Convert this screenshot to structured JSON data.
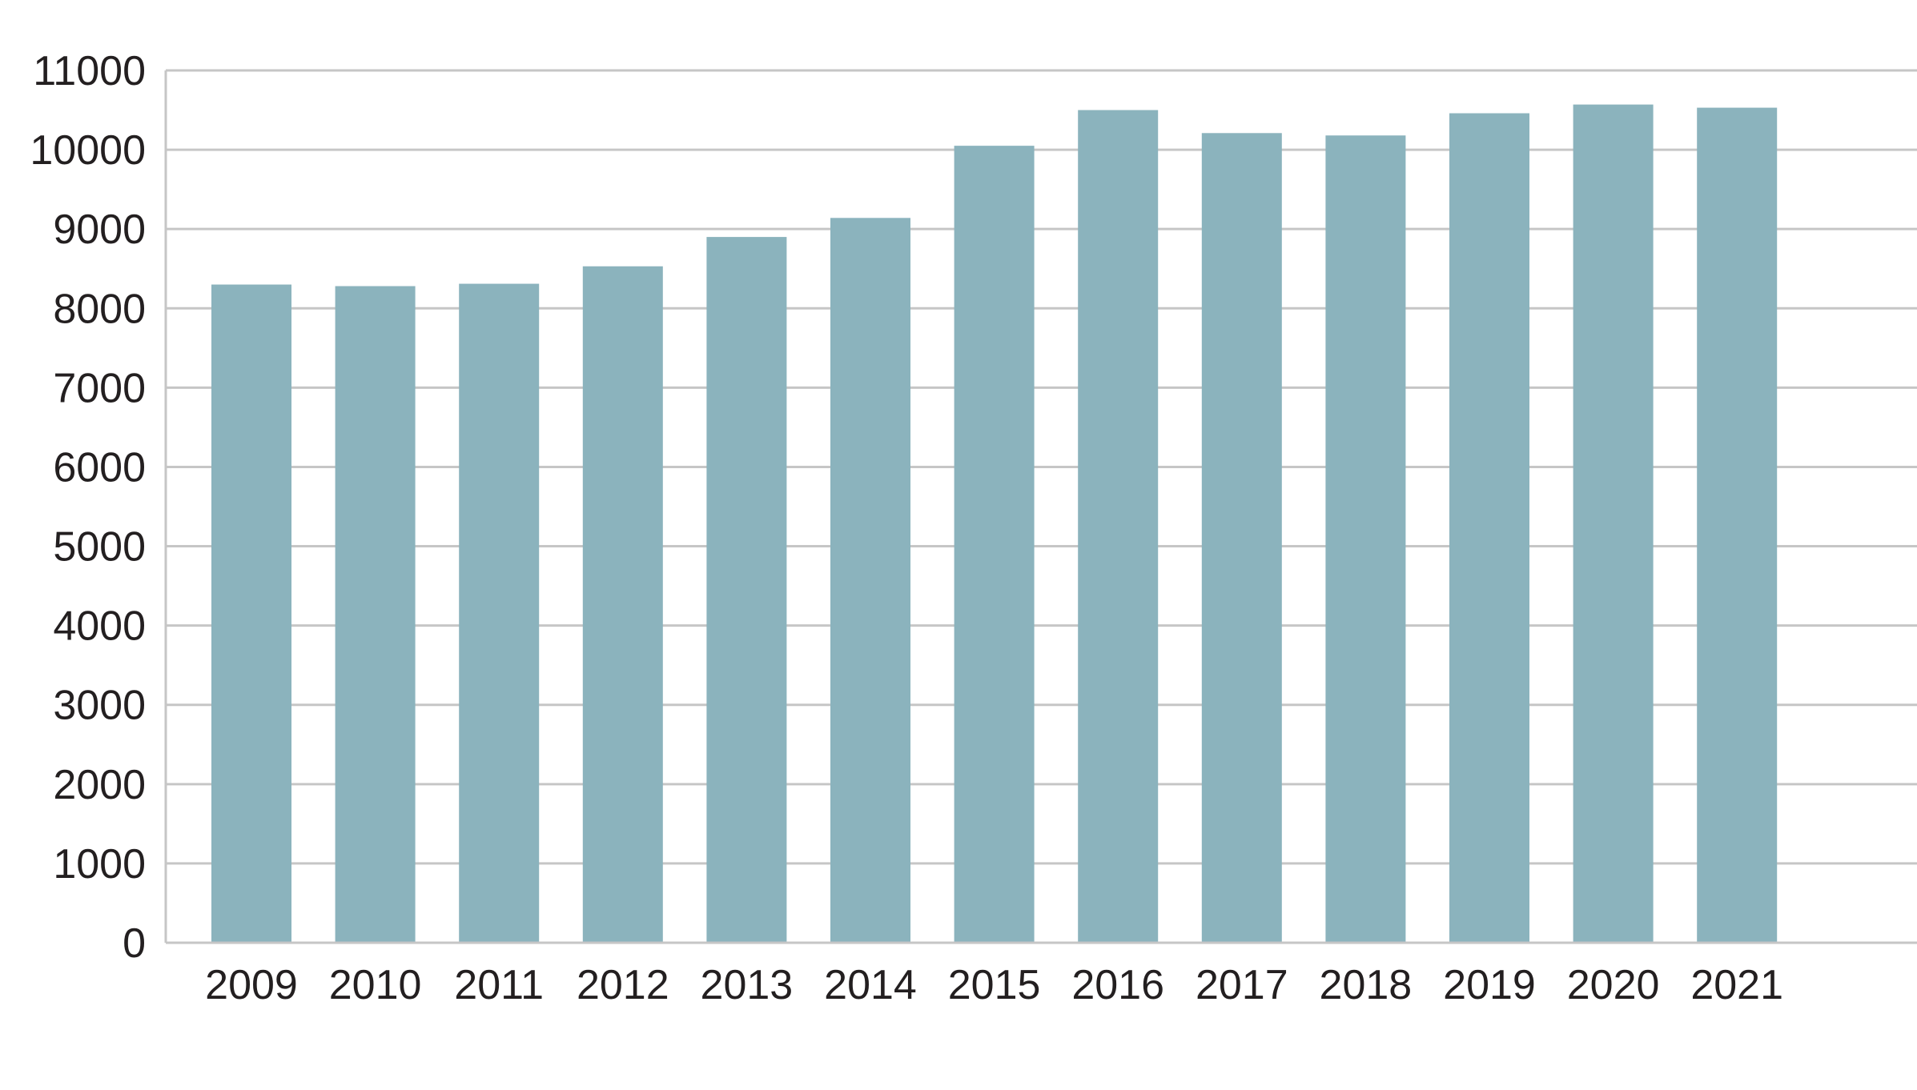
{
  "chart_data": {
    "type": "bar",
    "title": "",
    "xlabel": "",
    "ylabel": "",
    "categories": [
      "2009",
      "2010",
      "2011",
      "2012",
      "2013",
      "2014",
      "2015",
      "2016",
      "2017",
      "2018",
      "2019",
      "2020",
      "2021"
    ],
    "values": [
      8300,
      8280,
      8310,
      8530,
      8900,
      9140,
      10050,
      10500,
      10210,
      10180,
      10460,
      10570,
      10530
    ],
    "ylim": [
      0,
      11000
    ],
    "yticks": [
      "0",
      "1000",
      "2000",
      "3000",
      "4000",
      "5000",
      "6000",
      "7000",
      "8000",
      "9000",
      "10000",
      "11000"
    ],
    "grid": true,
    "legend": "none",
    "colors": {
      "bar": "#8bb3bd",
      "grid": "#c6c6c6",
      "text": "#231f20"
    }
  }
}
